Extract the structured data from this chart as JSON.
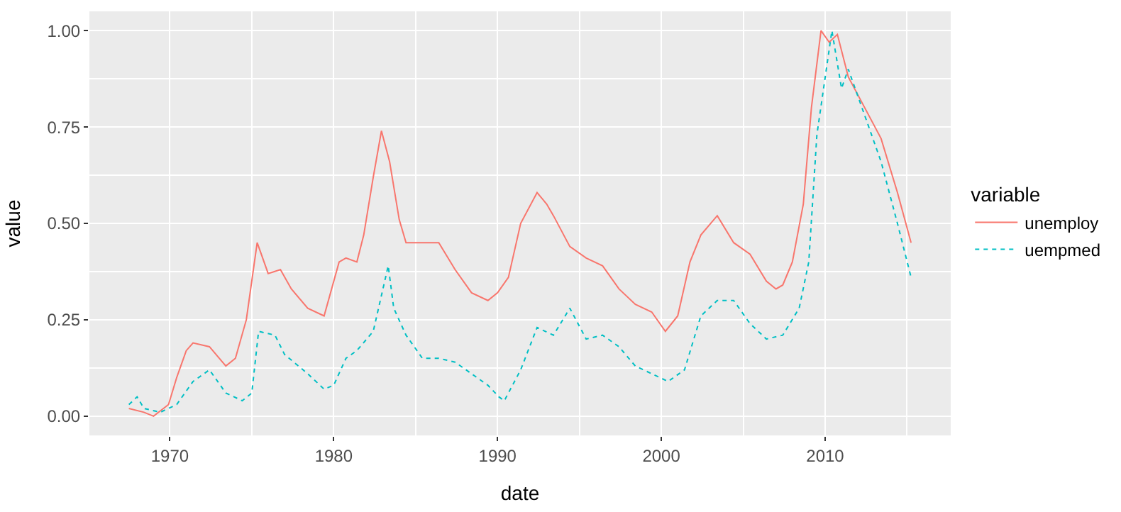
{
  "chart_data": {
    "type": "line",
    "xlabel": "date",
    "ylabel": "value",
    "legend_title": "variable",
    "legend": "right",
    "grid": true,
    "xlim": [
      "1965-02-01",
      "2017-09-01"
    ],
    "xticks": [
      {
        "value": "1970-01-01",
        "label": "1970"
      },
      {
        "value": "1980-01-01",
        "label": "1980"
      },
      {
        "value": "1990-01-01",
        "label": "1990"
      },
      {
        "value": "2000-01-01",
        "label": "2000"
      },
      {
        "value": "2010-01-01",
        "label": "2010"
      }
    ],
    "ylim": [
      -0.05,
      1.05
    ],
    "yticks": [
      {
        "value": 0,
        "label": "0.00"
      },
      {
        "value": 0.25,
        "label": "0.25"
      },
      {
        "value": 0.5,
        "label": "0.50"
      },
      {
        "value": 0.75,
        "label": "0.75"
      },
      {
        "value": 1,
        "label": "1.00"
      }
    ],
    "series": [
      {
        "name": "unemploy",
        "color": "#f8766d",
        "line_style": "solid",
        "x": [
          "1967-07",
          "1968-06",
          "1969-01",
          "1969-12",
          "1970-06",
          "1971-01",
          "1971-06",
          "1972-06",
          "1973-06",
          "1974-01",
          "1974-09",
          "1975-05",
          "1976-01",
          "1976-10",
          "1977-06",
          "1978-06",
          "1979-06",
          "1980-05",
          "1980-10",
          "1981-06",
          "1981-11",
          "1982-06",
          "1982-12",
          "1983-06",
          "1984-01",
          "1984-06",
          "1985-06",
          "1986-06",
          "1987-06",
          "1988-06",
          "1989-06",
          "1990-01",
          "1990-09",
          "1991-06",
          "1992-06",
          "1993-01",
          "1993-06",
          "1994-06",
          "1995-06",
          "1996-06",
          "1997-06",
          "1998-06",
          "1999-06",
          "2000-04",
          "2001-01",
          "2001-10",
          "2002-06",
          "2003-06",
          "2004-06",
          "2005-06",
          "2006-06",
          "2007-01",
          "2007-06",
          "2008-01",
          "2008-09",
          "2009-03",
          "2009-10",
          "2010-04",
          "2010-10",
          "2011-06",
          "2012-06",
          "2013-06",
          "2014-06",
          "2015-04"
        ],
        "values": [
          0.02,
          0.01,
          0.0,
          0.03,
          0.1,
          0.17,
          0.19,
          0.18,
          0.13,
          0.15,
          0.25,
          0.45,
          0.37,
          0.38,
          0.33,
          0.28,
          0.26,
          0.4,
          0.41,
          0.4,
          0.47,
          0.62,
          0.74,
          0.66,
          0.51,
          0.45,
          0.45,
          0.45,
          0.38,
          0.32,
          0.3,
          0.32,
          0.36,
          0.5,
          0.58,
          0.55,
          0.52,
          0.44,
          0.41,
          0.39,
          0.33,
          0.29,
          0.27,
          0.22,
          0.26,
          0.4,
          0.47,
          0.52,
          0.45,
          0.42,
          0.35,
          0.33,
          0.34,
          0.4,
          0.55,
          0.8,
          1.0,
          0.97,
          0.99,
          0.88,
          0.8,
          0.72,
          0.58,
          0.45
        ]
      },
      {
        "name": "uempmed",
        "color": "#00bfc4",
        "line_style": "dotted",
        "x": [
          "1967-07",
          "1968-01",
          "1968-06",
          "1969-06",
          "1970-06",
          "1971-06",
          "1972-06",
          "1973-06",
          "1974-06",
          "1975-01",
          "1975-06",
          "1976-06",
          "1977-01",
          "1978-06",
          "1979-06",
          "1980-01",
          "1980-10",
          "1981-06",
          "1982-06",
          "1983-05",
          "1983-09",
          "1984-06",
          "1985-06",
          "1986-06",
          "1987-06",
          "1988-06",
          "1989-06",
          "1990-02",
          "1990-06",
          "1991-06",
          "1992-06",
          "1993-06",
          "1994-06",
          "1995-06",
          "1996-06",
          "1997-06",
          "1998-06",
          "1999-06",
          "2000-06",
          "2001-06",
          "2002-06",
          "2003-06",
          "2004-06",
          "2005-06",
          "2006-06",
          "2007-06",
          "2008-06",
          "2009-01",
          "2009-07",
          "2010-06",
          "2011-01",
          "2011-06",
          "2012-06",
          "2013-06",
          "2014-06",
          "2015-04"
        ],
        "values": [
          0.03,
          0.05,
          0.02,
          0.01,
          0.03,
          0.09,
          0.12,
          0.06,
          0.04,
          0.06,
          0.22,
          0.21,
          0.16,
          0.11,
          0.07,
          0.08,
          0.15,
          0.17,
          0.22,
          0.39,
          0.28,
          0.21,
          0.15,
          0.15,
          0.14,
          0.11,
          0.08,
          0.05,
          0.04,
          0.12,
          0.23,
          0.21,
          0.28,
          0.2,
          0.21,
          0.18,
          0.13,
          0.11,
          0.09,
          0.12,
          0.26,
          0.3,
          0.3,
          0.24,
          0.2,
          0.21,
          0.28,
          0.4,
          0.73,
          1.0,
          0.85,
          0.9,
          0.78,
          0.66,
          0.5,
          0.36
        ]
      }
    ]
  }
}
